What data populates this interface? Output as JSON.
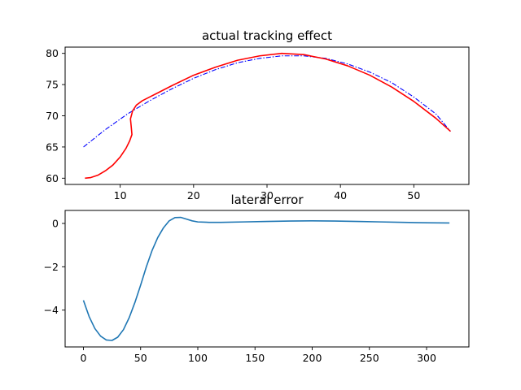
{
  "chart_data": [
    {
      "type": "line",
      "title": "actual tracking effect",
      "xlabel": "",
      "ylabel": "",
      "xlim": [
        2.5,
        57.5
      ],
      "ylim": [
        59.0,
        81.0
      ],
      "xticks": [
        10,
        20,
        30,
        40,
        50
      ],
      "yticks": [
        60,
        65,
        70,
        75,
        80
      ],
      "grid": false,
      "series": [
        {
          "color": "#0000ff",
          "linestyle": "dashdot",
          "x": [
            5,
            8,
            11,
            14,
            17,
            20,
            23,
            26,
            29,
            32,
            35,
            38,
            41,
            44,
            47,
            50,
            53,
            55
          ],
          "y": [
            65.0,
            67.8,
            70.3,
            72.4,
            74.3,
            76.0,
            77.4,
            78.5,
            79.2,
            79.6,
            79.6,
            79.2,
            78.3,
            77.0,
            75.3,
            73.0,
            70.3,
            67.5
          ]
        },
        {
          "color": "#ff0000",
          "linestyle": "solid",
          "x": [
            5.2,
            6.0,
            7.0,
            8.0,
            9.0,
            10.0,
            10.8,
            11.3,
            11.6,
            11.5,
            11.4,
            11.7,
            12.2,
            13.0,
            14.0,
            15.0,
            17.0,
            20.0,
            23.0,
            26.0,
            29.0,
            32.0,
            35.0,
            38.0,
            41.0,
            44.0,
            47.0,
            50.0,
            53.0,
            55.0
          ],
          "y": [
            60.0,
            60.1,
            60.5,
            61.2,
            62.1,
            63.4,
            64.8,
            66.0,
            67.0,
            68.3,
            69.5,
            70.8,
            71.7,
            72.4,
            73.0,
            73.6,
            74.8,
            76.5,
            77.8,
            78.9,
            79.6,
            80.0,
            79.8,
            79.1,
            78.0,
            76.5,
            74.6,
            72.3,
            69.6,
            67.5
          ]
        }
      ]
    },
    {
      "type": "line",
      "title": "lateral error",
      "xlabel": "",
      "ylabel": "",
      "xlim": [
        -16,
        337
      ],
      "ylim": [
        -5.7,
        0.6
      ],
      "xticks": [
        0,
        50,
        100,
        150,
        200,
        250,
        300
      ],
      "yticks": [
        0,
        -2,
        -4
      ],
      "ytick_labels": [
        "0",
        "−2",
        "−4"
      ],
      "grid": false,
      "series": [
        {
          "color": "#1f77b4",
          "linestyle": "solid",
          "x": [
            0,
            5,
            10,
            15,
            20,
            25,
            30,
            35,
            40,
            45,
            50,
            55,
            60,
            65,
            70,
            75,
            80,
            85,
            90,
            95,
            100,
            110,
            120,
            140,
            160,
            180,
            200,
            220,
            240,
            260,
            280,
            300,
            320
          ],
          "y": [
            -3.55,
            -4.3,
            -4.85,
            -5.2,
            -5.38,
            -5.4,
            -5.25,
            -4.9,
            -4.35,
            -3.65,
            -2.85,
            -2.0,
            -1.25,
            -0.65,
            -0.2,
            0.12,
            0.27,
            0.28,
            0.2,
            0.12,
            0.07,
            0.05,
            0.05,
            0.07,
            0.09,
            0.11,
            0.12,
            0.11,
            0.09,
            0.07,
            0.05,
            0.03,
            0.02
          ]
        }
      ]
    }
  ]
}
